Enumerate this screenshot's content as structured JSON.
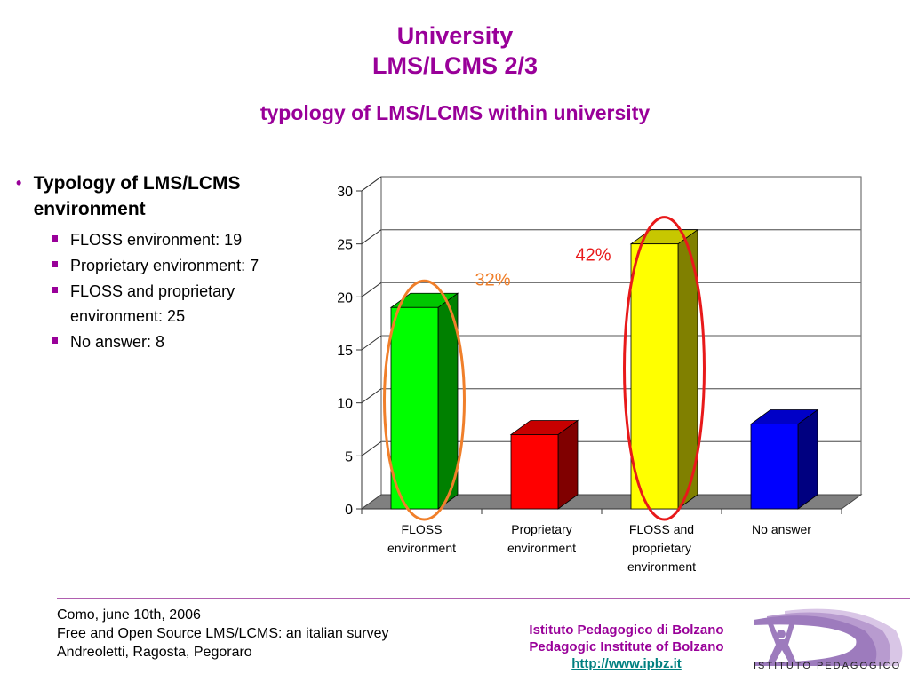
{
  "slide": {
    "title_line1": "University",
    "title_line2": "LMS/LCMS 2/3",
    "subtitle": "typology of LMS/LCMS within university",
    "accent_color": "#990099"
  },
  "bullets": {
    "main": "Typology of LMS/LCMS environment",
    "items": [
      "FLOSS environment: 19",
      "Proprietary environment: 7",
      "FLOSS and proprietary environment: 25",
      "No answer: 8"
    ]
  },
  "chart_data": {
    "type": "bar",
    "style": "3d-column",
    "title": "",
    "xlabel": "",
    "ylabel": "",
    "categories": [
      "FLOSS environment",
      "Proprietary environment",
      "FLOSS and proprietary environment",
      "No answer"
    ],
    "category_label_lines": [
      [
        "FLOSS",
        "environment"
      ],
      [
        "Proprietary",
        "environment"
      ],
      [
        "FLOSS and",
        "proprietary",
        "environment"
      ],
      [
        "No answer"
      ]
    ],
    "values": [
      19,
      7,
      25,
      8
    ],
    "colors": [
      "#00ff00",
      "#ff0000",
      "#ffff00",
      "#0000ff"
    ],
    "ylim": [
      0,
      30
    ],
    "yticks": [
      0,
      5,
      10,
      15,
      20,
      25,
      30
    ],
    "grid": true,
    "legend": "none",
    "annotations": [
      {
        "text": "32%",
        "category": "FLOSS environment",
        "color": "#f07f2a",
        "ellipse": true
      },
      {
        "text": "42%",
        "category": "FLOSS and proprietary environment",
        "color": "#e8191a",
        "ellipse": true
      }
    ]
  },
  "footer": {
    "left_lines": [
      "Como, june 10th, 2006",
      "Free and Open Source LMS/LCMS: an italian survey",
      "Andreoletti, Ragosta, Pegoraro"
    ],
    "institute_it": "Istituto Pedagogico di Bolzano",
    "institute_en": "Pedagogic Institute of Bolzano",
    "url": "http://www.ipbz.it",
    "logo_text": "ISTITUTO PEDAGOGICO"
  }
}
